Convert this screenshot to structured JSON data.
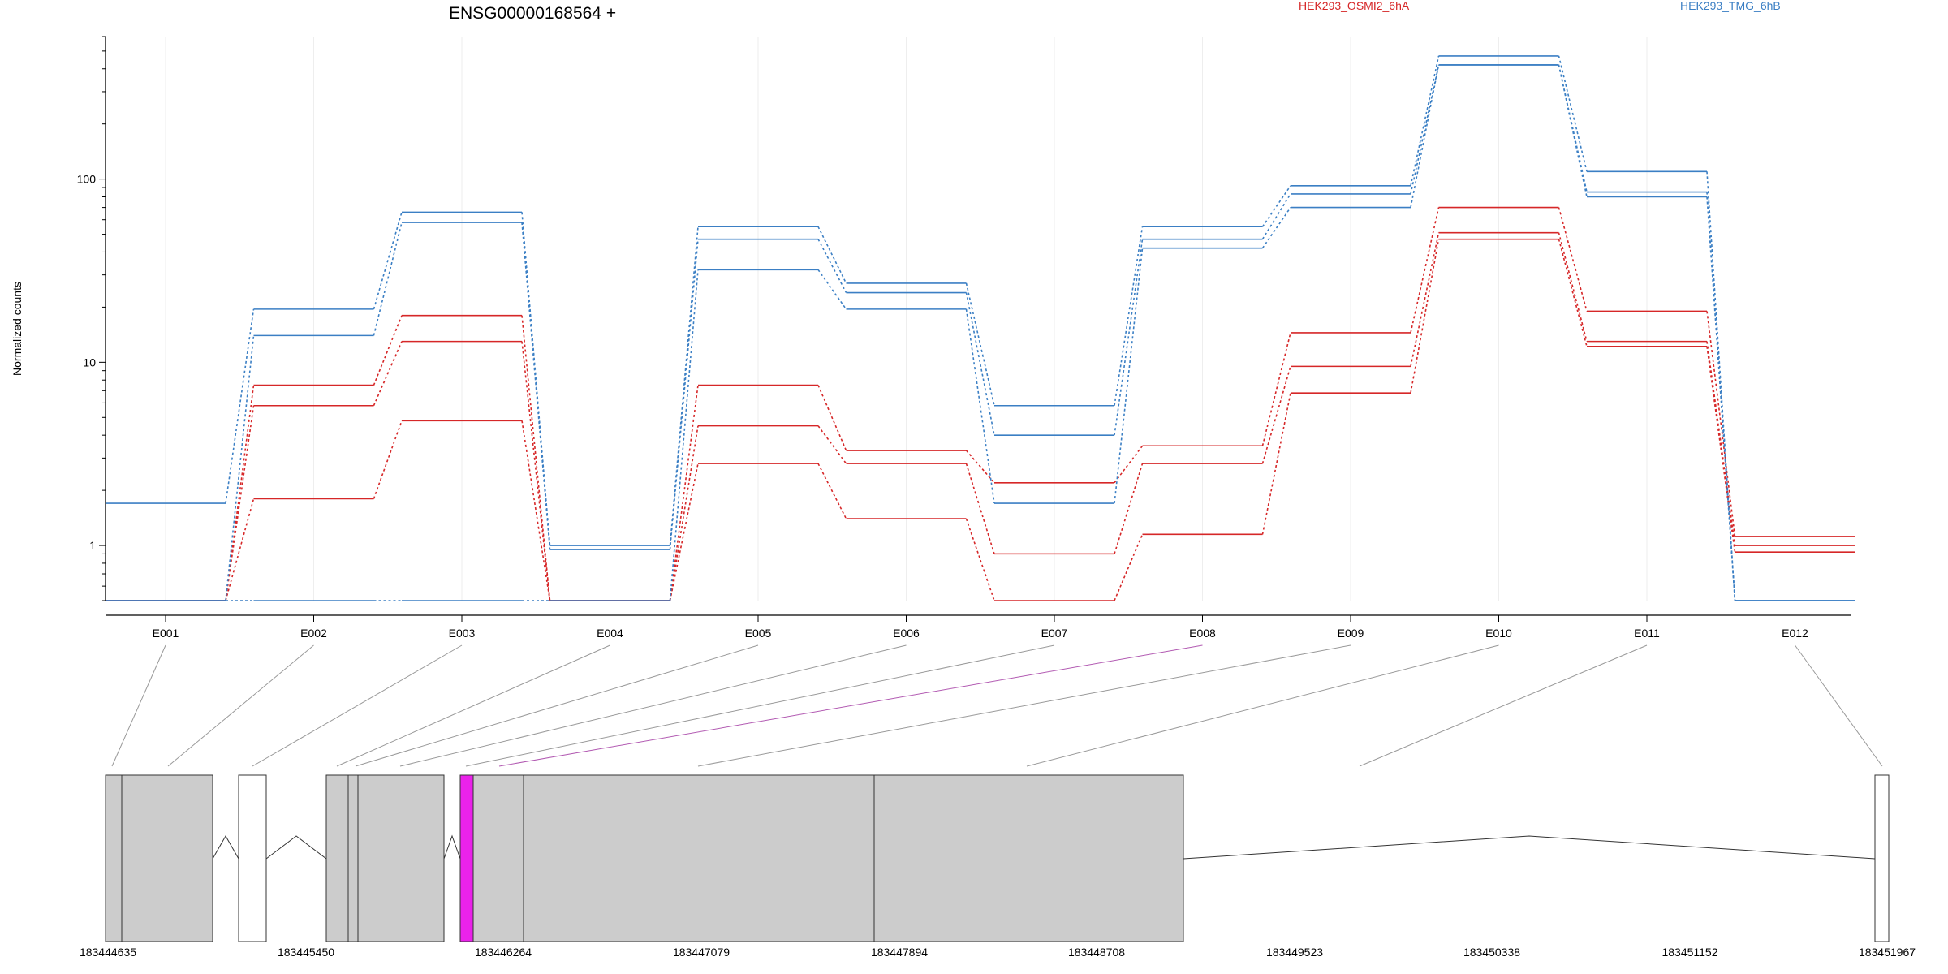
{
  "chart_data": {
    "type": "line",
    "title": "ENSG00000168564 +",
    "ylabel": "Normalized counts",
    "yscale": "log",
    "ylim": [
      0.5,
      600
    ],
    "yticks": [
      1,
      10,
      100
    ],
    "yticklabels": [
      "1",
      "10",
      "100"
    ],
    "grid": "vertical-light",
    "legend_placement": "top",
    "categories": [
      "E001",
      "E002",
      "E003",
      "E004",
      "E005",
      "E006",
      "E007",
      "E008",
      "E009",
      "E010",
      "E011",
      "E012"
    ],
    "highlight_exon": "E008",
    "colors": {
      "red": "#d62728",
      "blue": "#3b7fc4",
      "highlight": "#ea22ea",
      "exon_fill": "#cccccc"
    },
    "series": [
      {
        "name": "HEK293_OSMI2_6hA",
        "color": "#d62728",
        "values": [
          0.5,
          7.5,
          18,
          0.5,
          7.5,
          3.3,
          2.2,
          3.5,
          14.5,
          70,
          19,
          1.12
        ]
      },
      {
        "color": "#d62728",
        "values": [
          0.5,
          5.8,
          13,
          0.5,
          4.5,
          2.8,
          0.9,
          2.8,
          9.5,
          51,
          13,
          1.0
        ]
      },
      {
        "color": "#d62728",
        "values": [
          0.5,
          1.8,
          4.8,
          0.5,
          2.8,
          1.4,
          0.5,
          1.15,
          6.8,
          47,
          12.2,
          0.92
        ]
      },
      {
        "name": "HEK293_TMG_6hB",
        "color": "#3b7fc4",
        "values": [
          1.7,
          19.5,
          66,
          1.0,
          55,
          27,
          5.8,
          55,
          92,
          470,
          110,
          0.5
        ]
      },
      {
        "color": "#3b7fc4",
        "values": [
          0.5,
          14,
          58,
          0.95,
          47,
          24,
          4.0,
          47,
          83,
          420,
          85,
          0.5
        ]
      },
      {
        "color": "#3b7fc4",
        "values": [
          0.5,
          0.5,
          0.5,
          0.5,
          32,
          19.5,
          1.7,
          42,
          70,
          420,
          80,
          0.5
        ]
      }
    ],
    "gene_model": {
      "tick_labels": [
        "183444635",
        "183445450",
        "183446264",
        "183447079",
        "183447894",
        "183448708",
        "183449523",
        "183450338",
        "183451152",
        "183451967"
      ]
    }
  }
}
